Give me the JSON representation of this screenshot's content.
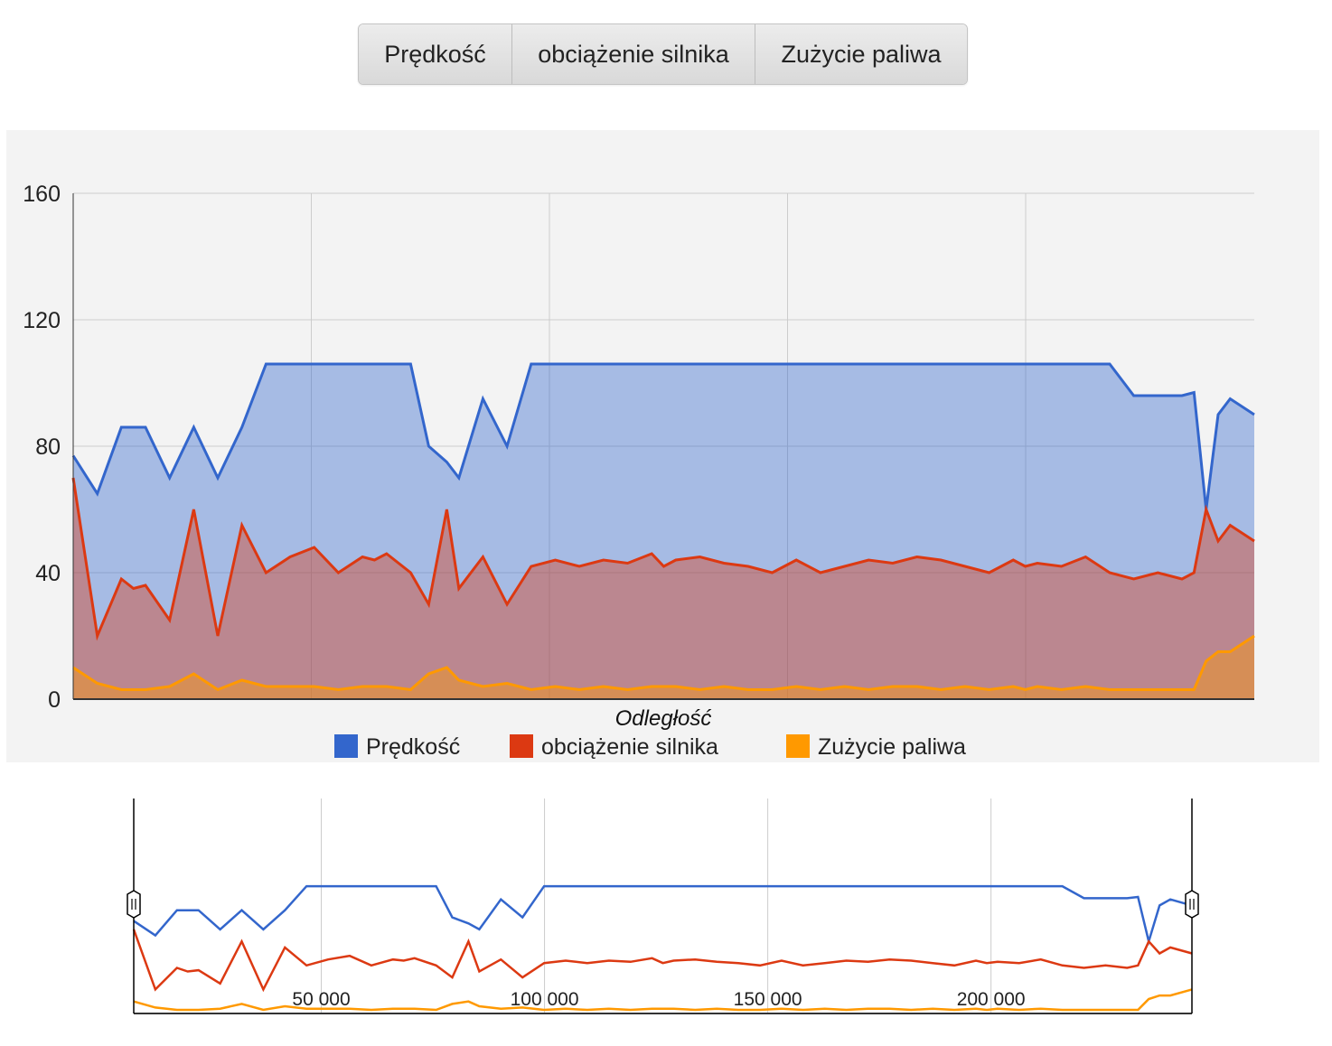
{
  "buttons": [
    {
      "label": "Prędkość"
    },
    {
      "label": "obciążenie silnika"
    },
    {
      "label": "Zużycie paliwa"
    }
  ],
  "colors": {
    "speed": "#3366cc",
    "load": "#dc3912",
    "fuel": "#ff9900",
    "panel_bg": "#f3f3f3",
    "grid": "#cccccc"
  },
  "chart_data": [
    {
      "type": "area",
      "title": "",
      "xlabel": "Odległość",
      "ylabel": "",
      "ylim": [
        0,
        160
      ],
      "yticks": [
        "0",
        "40",
        "80",
        "120",
        "160"
      ],
      "grid": true,
      "legend": "bottom",
      "xlim": [
        47000,
        243000
      ],
      "x": [
        47000,
        51000,
        55000,
        57000,
        59000,
        63000,
        67000,
        71000,
        75000,
        79000,
        83000,
        87000,
        91000,
        95000,
        97000,
        99000,
        103000,
        106000,
        109000,
        111000,
        115000,
        119000,
        123000,
        127000,
        131000,
        135000,
        139000,
        143000,
        145000,
        147000,
        151000,
        155000,
        159000,
        163000,
        167000,
        171000,
        175000,
        179000,
        183000,
        187000,
        191000,
        195000,
        199000,
        203000,
        205000,
        207000,
        211000,
        215000,
        219000,
        223000,
        227000,
        231000,
        233000,
        235000,
        237000,
        239000,
        243000
      ],
      "series": [
        {
          "name": "Prędkość",
          "values": [
            77,
            65,
            86,
            86,
            86,
            70,
            86,
            70,
            86,
            106,
            106,
            106,
            106,
            106,
            106,
            106,
            106,
            80,
            75,
            70,
            95,
            80,
            106,
            106,
            106,
            106,
            106,
            106,
            106,
            106,
            106,
            106,
            106,
            106,
            106,
            106,
            106,
            106,
            106,
            106,
            106,
            106,
            106,
            106,
            106,
            106,
            106,
            106,
            106,
            96,
            96,
            96,
            97,
            60,
            90,
            95,
            90
          ]
        },
        {
          "name": "obciążenie silnika",
          "values": [
            70,
            20,
            38,
            35,
            36,
            25,
            60,
            20,
            55,
            40,
            45,
            48,
            40,
            45,
            44,
            46,
            40,
            30,
            60,
            35,
            45,
            30,
            42,
            44,
            42,
            44,
            43,
            46,
            42,
            44,
            45,
            43,
            42,
            40,
            44,
            40,
            42,
            44,
            43,
            45,
            44,
            42,
            40,
            44,
            42,
            43,
            42,
            45,
            40,
            38,
            40,
            38,
            40,
            60,
            50,
            55,
            50
          ]
        },
        {
          "name": "Zużycie paliwa",
          "values": [
            10,
            5,
            3,
            3,
            3,
            4,
            8,
            3,
            6,
            4,
            4,
            4,
            3,
            4,
            4,
            4,
            3,
            8,
            10,
            6,
            4,
            5,
            3,
            4,
            3,
            4,
            3,
            4,
            4,
            4,
            3,
            4,
            3,
            3,
            4,
            3,
            4,
            3,
            4,
            4,
            3,
            4,
            3,
            4,
            3,
            4,
            3,
            4,
            3,
            3,
            3,
            3,
            3,
            12,
            15,
            15,
            20
          ]
        }
      ]
    },
    {
      "type": "line",
      "title": "",
      "xlabel": "",
      "ylabel": "",
      "xlim": [
        8000,
        245000
      ],
      "xticks": [
        "50 000",
        "100 000",
        "150 000",
        "200 000"
      ],
      "xtick_values": [
        50000,
        100000,
        150000,
        200000
      ],
      "range_selection": [
        8000,
        245000
      ],
      "grid": true
    }
  ]
}
